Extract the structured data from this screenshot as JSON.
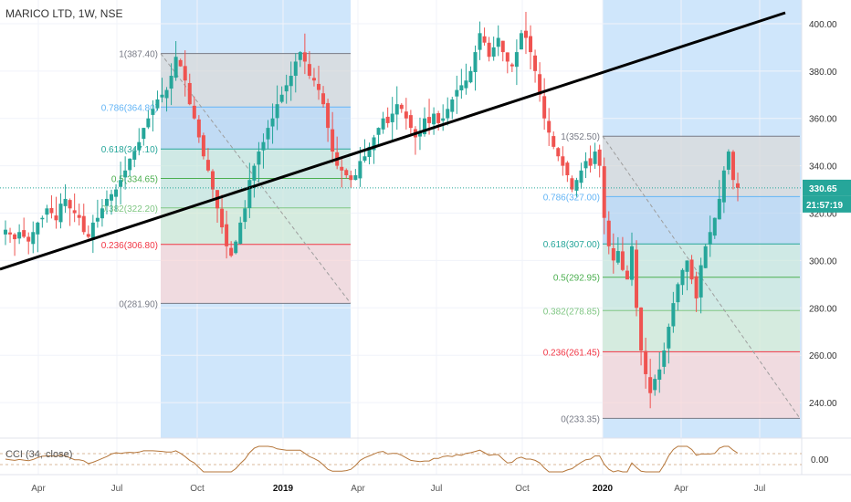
{
  "symbol": {
    "title": "MARICO LTD, 1W, NSE"
  },
  "oscillator": {
    "label": "CCI (34, close)"
  },
  "colors": {
    "up": "#26a69a",
    "down": "#ef5350",
    "trendline": "#000000",
    "last_price_bg": "#26a69a",
    "blue_zone": "#cfe6fb",
    "grid": "#f0f3fa",
    "cci_line": "#b5763a"
  },
  "chart_data": {
    "type": "candlestick",
    "title": "MARICO LTD, 1W, NSE",
    "price_axis": {
      "min": 225,
      "max": 410,
      "ticks": [
        400,
        380,
        360,
        340,
        320,
        300,
        280,
        260,
        240
      ]
    },
    "time_axis": {
      "ticks": [
        "Apr",
        "Jul",
        "Oct",
        "2019",
        "Apr",
        "Jul",
        "Oct",
        "2020",
        "Apr",
        "Jul"
      ]
    },
    "last_price": "330.65",
    "countdown": "21:57:19",
    "fib_sets": [
      {
        "levels": [
          {
            "ratio": "1",
            "price": 387.4,
            "label": "1(387.40)"
          },
          {
            "ratio": "0.786",
            "price": 364.8,
            "label": "0.786(364.80)"
          },
          {
            "ratio": "0.618",
            "price": 347.1,
            "label": "0.618(347.10)"
          },
          {
            "ratio": "0.5",
            "price": 334.65,
            "label": "0.5(334.65)"
          },
          {
            "ratio": "0.382",
            "price": 322.2,
            "label": "0.382(322.20)"
          },
          {
            "ratio": "0.236",
            "price": 306.8,
            "label": "0.236(306.80)"
          },
          {
            "ratio": "0",
            "price": 281.9,
            "label": "0(281.90)"
          }
        ]
      },
      {
        "levels": [
          {
            "ratio": "1",
            "price": 352.5,
            "label": "1(352.50)"
          },
          {
            "ratio": "0.786",
            "price": 327.0,
            "label": "0.786(327.00)"
          },
          {
            "ratio": "0.618",
            "price": 307.0,
            "label": "0.618(307.00)"
          },
          {
            "ratio": "0.5",
            "price": 292.95,
            "label": "0.5(292.95)"
          },
          {
            "ratio": "0.382",
            "price": 278.85,
            "label": "0.382(278.85)"
          },
          {
            "ratio": "0.236",
            "price": 261.45,
            "label": "0.236(261.45)"
          },
          {
            "ratio": "0",
            "price": 233.35,
            "label": "0(233.35)"
          }
        ]
      }
    ],
    "closes": [
      313,
      311,
      309,
      312,
      310,
      308,
      312,
      316,
      318,
      322,
      320,
      317,
      324,
      326,
      322,
      320,
      318,
      312,
      310,
      316,
      318,
      322,
      326,
      328,
      330,
      334,
      338,
      343,
      346,
      350,
      356,
      360,
      364,
      368,
      370,
      372,
      378,
      386,
      382,
      376,
      366,
      360,
      352,
      344,
      338,
      330,
      322,
      314,
      306,
      302,
      308,
      316,
      322,
      334,
      340,
      346,
      350,
      356,
      360,
      366,
      370,
      374,
      378,
      384,
      388,
      384,
      378,
      376,
      372,
      366,
      356,
      346,
      340,
      338,
      336,
      334,
      336,
      342,
      344,
      348,
      352,
      356,
      360,
      358,
      362,
      366,
      364,
      360,
      356,
      352,
      354,
      360,
      358,
      362,
      358,
      360,
      364,
      368,
      372,
      374,
      376,
      380,
      388,
      396,
      392,
      386,
      390,
      394,
      388,
      384,
      382,
      388,
      396,
      394,
      388,
      380,
      370,
      360,
      354,
      348,
      344,
      340,
      336,
      330,
      334,
      338,
      342,
      340,
      346,
      340,
      318,
      306,
      300,
      304,
      296,
      292,
      306,
      280,
      262,
      252,
      244,
      250,
      254,
      262,
      272,
      282,
      290,
      296,
      300,
      292,
      284,
      298,
      306,
      312,
      318,
      326,
      338,
      346,
      334,
      330.65
    ],
    "cci": {
      "zero": "0.00"
    }
  }
}
